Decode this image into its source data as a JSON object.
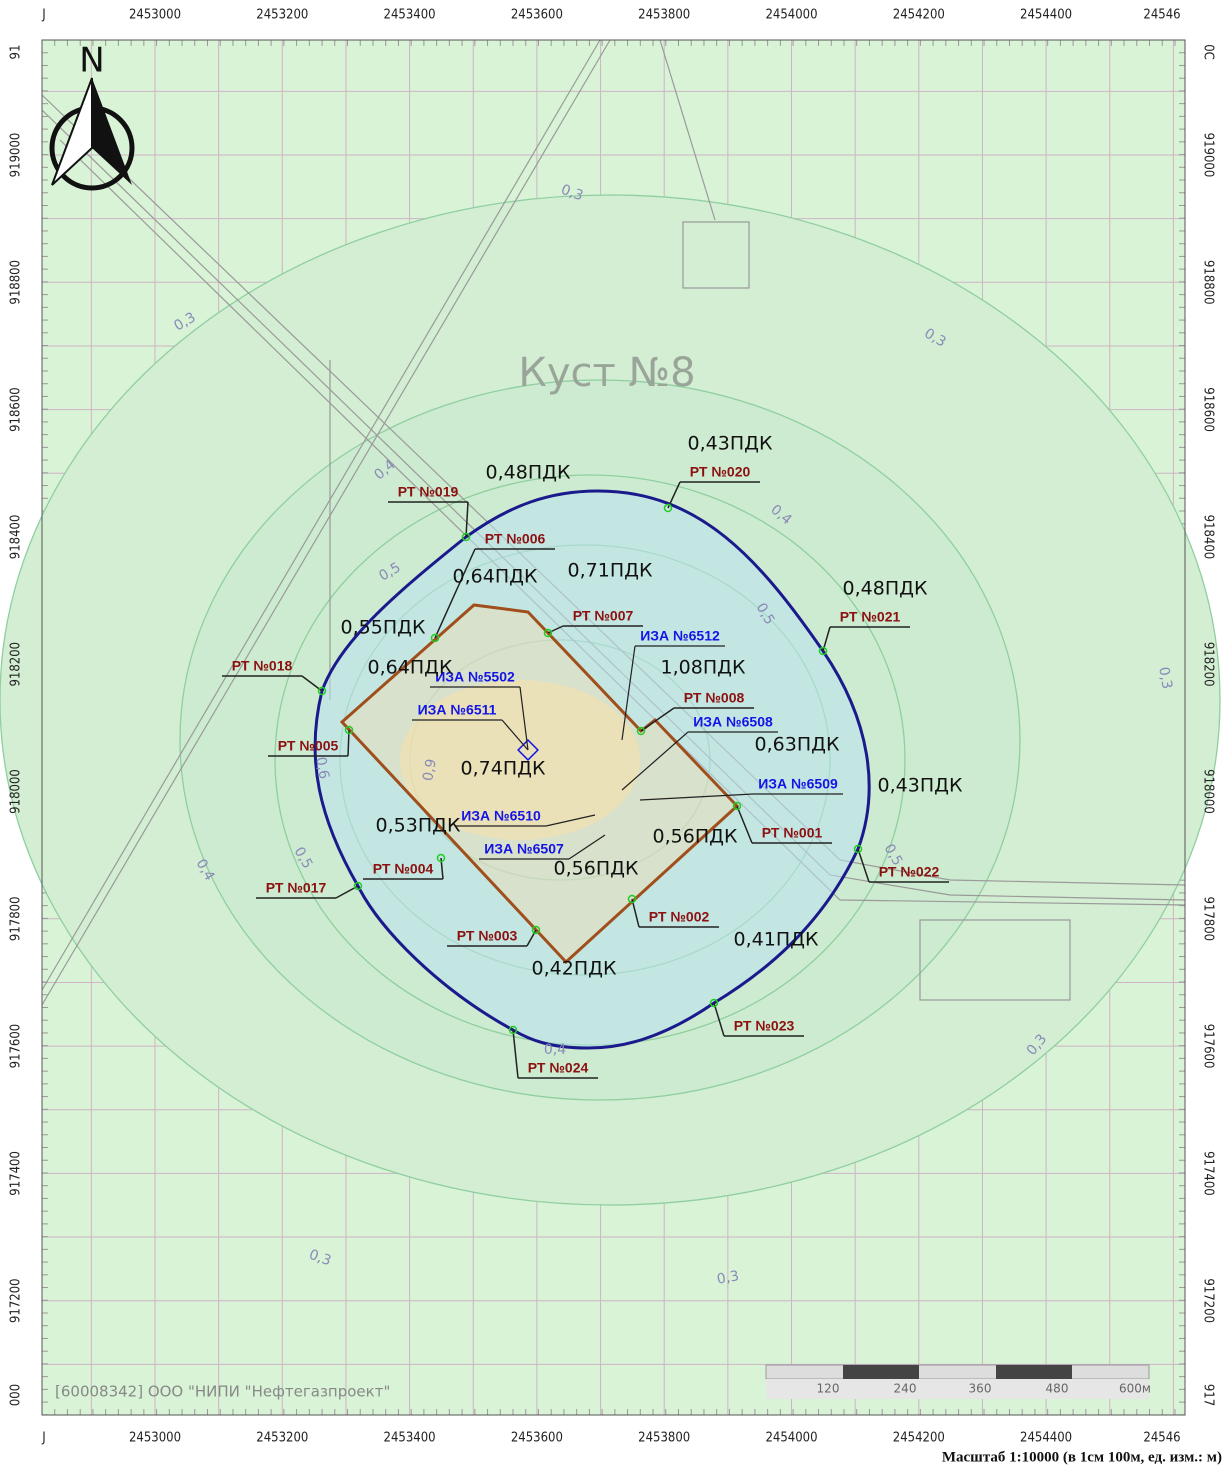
{
  "map": {
    "title": "Куст №8",
    "north": "N",
    "x_labels": [
      "J",
      "2453000",
      "2453200",
      "2453400",
      "2453600",
      "2453800",
      "2454000",
      "2454200",
      "2454400",
      "24546"
    ],
    "y_labels_left": [
      "91",
      "919000",
      "918800",
      "918600",
      "918400",
      "918200",
      "918000",
      "917800",
      "917600",
      "917400",
      "917200",
      "000"
    ],
    "y_labels_right": [
      "0C",
      "919000",
      "918800",
      "918600",
      "918400",
      "918200",
      "918000",
      "917800",
      "917600",
      "917400",
      "917200",
      "917"
    ],
    "control_points": [
      "РТ №019",
      "РТ №006",
      "РТ №020",
      "РТ №021",
      "РТ №007",
      "РТ №018",
      "РТ №008",
      "РТ №005",
      "РТ №001",
      "РТ №022",
      "РТ №004",
      "РТ №017",
      "РТ №002",
      "РТ №003",
      "РТ №023",
      "РТ №024"
    ],
    "sources": [
      "ИЗА №6512",
      "ИЗА №5502",
      "ИЗА №6511",
      "ИЗА №6508",
      "ИЗА №6509",
      "ИЗА №6510",
      "ИЗА №6507"
    ],
    "concentrations": [
      "0,43ПДК",
      "0,48ПДК",
      "0,64ПДК",
      "0,71ПДК",
      "0,48ПДК",
      "0,55ПДК",
      "0,64ПДК",
      "1,08ПДК",
      "0,63ПДК",
      "0,74ПДК",
      "0,43ПДК",
      "0,53ПДК",
      "0,56ПДК",
      "0,56ПДК",
      "0,41ПДК",
      "0,42ПДК"
    ],
    "contour_labels": [
      "0,3",
      "0,3",
      "0,3",
      "0,3",
      "0,3",
      "0,3",
      "0,3",
      "0,4",
      "0,4",
      "0,4",
      "0,4",
      "0,5",
      "0,5",
      "0,5",
      "0,5",
      "0,6",
      "0,9"
    ],
    "credit": "[60008342] ООО \"НИПИ \"Нефтегазпроект\"",
    "scale_bar": [
      "120",
      "240",
      "360",
      "480",
      "600м"
    ],
    "scale_note": "Масштаб 1:10000 (в 1см 100м, ед. изм.: м)"
  }
}
